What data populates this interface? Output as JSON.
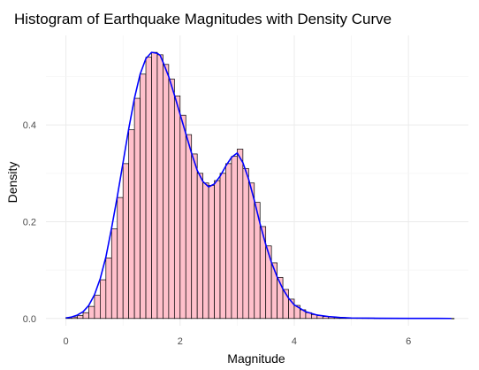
{
  "chart_data": {
    "type": "bar",
    "title": "Histogram of Earthquake Magnitudes with Density Curve",
    "xlabel": "Magnitude",
    "ylabel": "Density",
    "xlim": [
      -0.35,
      7.05
    ],
    "ylim": [
      -0.015,
      0.585
    ],
    "grid": true,
    "legend": "none",
    "xticks": [
      0,
      2,
      4,
      6
    ],
    "yticks": [
      0.0,
      0.2,
      0.4
    ],
    "ytick_labels": [
      "0.0",
      "0.2",
      "0.4"
    ],
    "bin_width": 0.1,
    "bin_starts": [
      0.0,
      0.1,
      0.2,
      0.3,
      0.4,
      0.5,
      0.6,
      0.7,
      0.8,
      0.9,
      1.0,
      1.1,
      1.2,
      1.3,
      1.4,
      1.5,
      1.6,
      1.7,
      1.8,
      1.9,
      2.0,
      2.1,
      2.2,
      2.3,
      2.4,
      2.5,
      2.6,
      2.7,
      2.8,
      2.9,
      3.0,
      3.1,
      3.2,
      3.3,
      3.4,
      3.5,
      3.6,
      3.7,
      3.8,
      3.9,
      4.0,
      4.1,
      4.2,
      4.3,
      4.4,
      4.5,
      4.6,
      4.7,
      4.8,
      4.9,
      5.0,
      5.1,
      5.2,
      5.3,
      5.4,
      5.5,
      5.6,
      5.7,
      5.8,
      5.9,
      6.0,
      6.1,
      6.2,
      6.3,
      6.4,
      6.5,
      6.6,
      6.7
    ],
    "values": [
      0.002,
      0.003,
      0.006,
      0.012,
      0.025,
      0.048,
      0.08,
      0.125,
      0.185,
      0.25,
      0.32,
      0.39,
      0.455,
      0.505,
      0.54,
      0.55,
      0.545,
      0.525,
      0.495,
      0.46,
      0.42,
      0.38,
      0.34,
      0.3,
      0.28,
      0.275,
      0.285,
      0.3,
      0.32,
      0.335,
      0.35,
      0.31,
      0.28,
      0.24,
      0.19,
      0.15,
      0.115,
      0.085,
      0.06,
      0.04,
      0.027,
      0.018,
      0.012,
      0.008,
      0.006,
      0.004,
      0.003,
      0.002,
      0.002,
      0.001,
      0.001,
      0.001,
      0.001,
      0.001,
      0.0005,
      0.0005,
      0.0005,
      0.0005,
      0.0003,
      0.0003,
      0.0003,
      0.0002,
      0.0002,
      0.0002,
      0.0001,
      0.0001,
      0.0001,
      0.0001
    ],
    "density_curve": {
      "x": [
        0.0,
        0.1,
        0.2,
        0.3,
        0.4,
        0.5,
        0.6,
        0.7,
        0.8,
        0.9,
        1.0,
        1.1,
        1.2,
        1.3,
        1.4,
        1.5,
        1.6,
        1.65,
        1.7,
        1.8,
        1.9,
        2.0,
        2.1,
        2.2,
        2.3,
        2.4,
        2.5,
        2.6,
        2.7,
        2.8,
        2.9,
        3.0,
        3.1,
        3.2,
        3.3,
        3.4,
        3.5,
        3.6,
        3.7,
        3.8,
        3.9,
        4.0,
        4.2,
        4.4,
        4.6,
        4.8,
        5.0,
        5.5,
        6.0,
        6.5,
        6.75
      ],
      "y": [
        0.001,
        0.003,
        0.007,
        0.014,
        0.027,
        0.049,
        0.082,
        0.127,
        0.187,
        0.252,
        0.322,
        0.392,
        0.455,
        0.505,
        0.537,
        0.55,
        0.548,
        0.544,
        0.53,
        0.5,
        0.462,
        0.422,
        0.382,
        0.342,
        0.306,
        0.283,
        0.272,
        0.278,
        0.294,
        0.315,
        0.333,
        0.342,
        0.322,
        0.288,
        0.244,
        0.196,
        0.153,
        0.116,
        0.086,
        0.061,
        0.042,
        0.028,
        0.014,
        0.007,
        0.004,
        0.002,
        0.001,
        0.0005,
        0.0003,
        0.0002,
        0.0001
      ]
    },
    "colors": {
      "bar_fill": "#ffc0cb",
      "bar_outline": "#000000",
      "curve": "#0000ff",
      "grid_major": "#ebebeb",
      "grid_minor": "#f5f5f5",
      "tick_text": "#4d4d4d"
    }
  }
}
